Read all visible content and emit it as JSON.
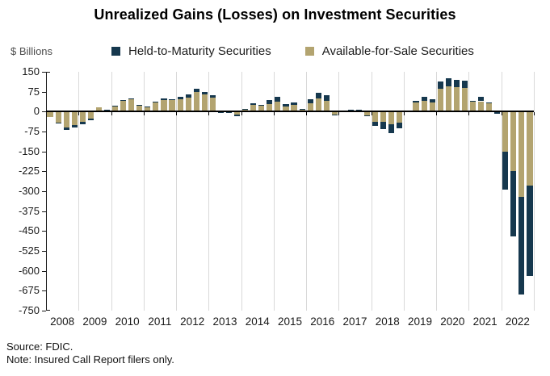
{
  "title": "Unrealized Gains (Losses) on Investment Securities",
  "y_axis_label": "$ Billions",
  "footer": {
    "source": "Source: FDIC.",
    "note": "Note: Insured Call Report filers only."
  },
  "colors": {
    "held_to_maturity": "#16384e",
    "available_for_sale": "#b3a470",
    "gridline": "#d9d9d9",
    "axis": "#1a1a1a"
  },
  "chart_data": {
    "type": "bar",
    "stacked": true,
    "frequency": "quarterly",
    "title": "Unrealized Gains (Losses) on Investment Securities",
    "ylabel": "$ Billions",
    "ylim": [
      -750,
      150
    ],
    "y_ticks": [
      150,
      75,
      0,
      -75,
      -150,
      -225,
      -300,
      -375,
      -450,
      -525,
      -600,
      -675,
      -750
    ],
    "grid": "vertical-year-separators",
    "legend_position": "top",
    "x_tick_labels": [
      "2008",
      "2009",
      "2010",
      "2011",
      "2012",
      "2013",
      "2014",
      "2015",
      "2016",
      "2017",
      "2018",
      "2019",
      "2020",
      "2021",
      "2022"
    ],
    "quarters": [
      "2008 Q1",
      "2008 Q2",
      "2008 Q3",
      "2008 Q4",
      "2009 Q1",
      "2009 Q2",
      "2009 Q3",
      "2009 Q4",
      "2010 Q1",
      "2010 Q2",
      "2010 Q3",
      "2010 Q4",
      "2011 Q1",
      "2011 Q2",
      "2011 Q3",
      "2011 Q4",
      "2012 Q1",
      "2012 Q2",
      "2012 Q3",
      "2012 Q4",
      "2013 Q1",
      "2013 Q2",
      "2013 Q3",
      "2013 Q4",
      "2014 Q1",
      "2014 Q2",
      "2014 Q3",
      "2014 Q4",
      "2015 Q1",
      "2015 Q2",
      "2015 Q3",
      "2015 Q4",
      "2016 Q1",
      "2016 Q2",
      "2016 Q3",
      "2016 Q4",
      "2017 Q1",
      "2017 Q2",
      "2017 Q3",
      "2017 Q4",
      "2018 Q1",
      "2018 Q2",
      "2018 Q3",
      "2018 Q4",
      "2019 Q1",
      "2019 Q2",
      "2019 Q3",
      "2019 Q4",
      "2020 Q1",
      "2020 Q2",
      "2020 Q3",
      "2020 Q4",
      "2021 Q1",
      "2021 Q2",
      "2021 Q3",
      "2021 Q4",
      "2022 Q1",
      "2022 Q2",
      "2022 Q3",
      "2022 Q4"
    ],
    "series": [
      {
        "name": "Held-to-Maturity Securities",
        "color": "#16384e",
        "values": [
          0,
          -3,
          -8,
          -8,
          -10,
          -6,
          0,
          3,
          2,
          3,
          5,
          2,
          2,
          4,
          7,
          5,
          8,
          10,
          12,
          10,
          10,
          -3,
          -3,
          -6,
          1,
          5,
          4,
          14,
          18,
          7,
          9,
          2,
          16,
          22,
          20,
          -3,
          0,
          5,
          5,
          -2,
          -15,
          -25,
          -34,
          -20,
          4,
          6,
          15,
          13,
          26,
          33,
          30,
          27,
          5,
          17,
          4,
          -6,
          -145,
          -245,
          -370,
          -340
        ]
      },
      {
        "name": "Available-for-Sale Securities",
        "color": "#b3a470",
        "values": [
          -20,
          -42,
          -60,
          -51,
          -39,
          -27,
          15,
          4,
          20,
          40,
          46,
          23,
          18,
          34,
          44,
          43,
          48,
          54,
          73,
          65,
          52,
          -2,
          -2,
          -12,
          9,
          25,
          21,
          29,
          38,
          20,
          26,
          8,
          30,
          50,
          42,
          -12,
          -3,
          2,
          3,
          -13,
          -40,
          -40,
          -48,
          -42,
          1,
          34,
          40,
          33,
          86,
          94,
          91,
          89,
          36,
          39,
          31,
          -3,
          -150,
          -225,
          -320,
          -280
        ]
      }
    ]
  }
}
